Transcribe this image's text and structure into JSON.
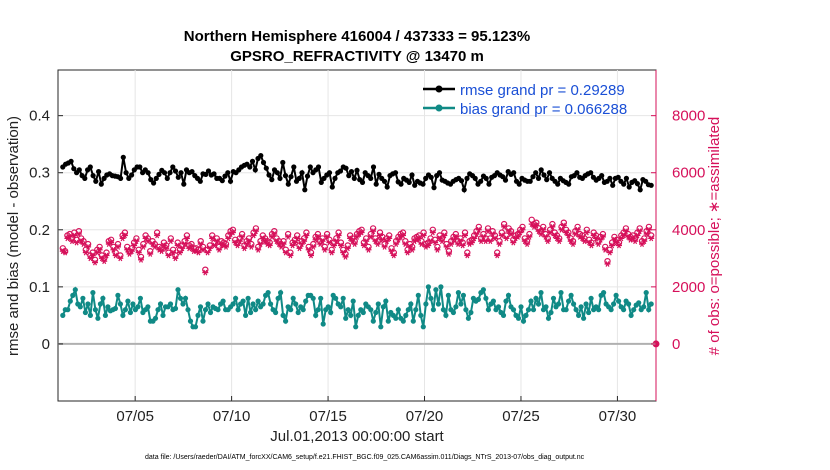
{
  "chart_data": {
    "type": "line",
    "title_line1": "Northern Hemisphere 416004 / 437333 = 95.123%",
    "title_line2": "GPSRO_REFRACTIVITY @ 13470 m",
    "xlabel": "Jul.01,2013 00:00:00 start",
    "ylabel_left": "rmse and bias (model - observation)",
    "ylabel_right": "# of obs: o=possible; ∗=assimilated",
    "footer": "data file: /Users/raeder/DAI/ATM_forcXX/CAM6_setup/f.e21.FHIST_BGC.f09_025.CAM6assim.011/Diags_NTrS_2013-07/obs_diag_output.nc",
    "x_range": [
      1.0,
      32.0
    ],
    "x_ticks": [
      {
        "value": 5,
        "label": "07/05"
      },
      {
        "value": 10,
        "label": "07/10"
      },
      {
        "value": 15,
        "label": "07/15"
      },
      {
        "value": 20,
        "label": "07/20"
      },
      {
        "value": 25,
        "label": "07/25"
      },
      {
        "value": 30,
        "label": "07/30"
      }
    ],
    "ylim_left": [
      -0.1,
      0.48
    ],
    "yticks_left": [
      {
        "value": 0,
        "label": "0"
      },
      {
        "value": 0.1,
        "label": "0.1"
      },
      {
        "value": 0.2,
        "label": "0.2"
      },
      {
        "value": 0.3,
        "label": "0.3"
      },
      {
        "value": 0.4,
        "label": "0.4"
      }
    ],
    "ylim_right": [
      -2000,
      9600
    ],
    "yticks_right": [
      {
        "value": 0,
        "label": "0"
      },
      {
        "value": 2000,
        "label": "2000"
      },
      {
        "value": 4000,
        "label": "4000"
      },
      {
        "value": 6000,
        "label": "6000"
      },
      {
        "value": 8000,
        "label": "8000"
      }
    ],
    "zero_line_left": 0,
    "legend_position": "top-right",
    "colors": {
      "rmse": "#000000",
      "bias": "#108a86",
      "obs": "#d6105a",
      "zero": "#b0b0b0",
      "legend_text": "#1a4fd6"
    },
    "series": [
      {
        "name": "rmse grand pr = 0.29289",
        "key": "rmse",
        "axis": "left",
        "values": [
          0.31,
          0.315,
          0.317,
          0.32,
          0.307,
          0.3,
          0.305,
          0.295,
          0.29,
          0.305,
          0.31,
          0.295,
          0.285,
          0.302,
          0.28,
          0.29,
          0.296,
          0.298,
          0.295,
          0.294,
          0.293,
          0.29,
          0.327,
          0.3,
          0.29,
          0.296,
          0.305,
          0.31,
          0.31,
          0.3,
          0.305,
          0.3,
          0.288,
          0.282,
          0.29,
          0.297,
          0.304,
          0.3,
          0.29,
          0.3,
          0.31,
          0.303,
          0.292,
          0.3,
          0.28,
          0.305,
          0.3,
          0.302,
          0.295,
          0.29,
          0.285,
          0.298,
          0.297,
          0.303,
          0.296,
          0.298,
          0.29,
          0.29,
          0.286,
          0.294,
          0.3,
          0.285,
          0.302,
          0.3,
          0.305,
          0.31,
          0.313,
          0.315,
          0.31,
          0.32,
          0.305,
          0.325,
          0.33,
          0.318,
          0.308,
          0.296,
          0.288,
          0.305,
          0.3,
          0.29,
          0.318,
          0.295,
          0.28,
          0.293,
          0.31,
          0.285,
          0.29,
          0.3,
          0.27,
          0.294,
          0.31,
          0.3,
          0.305,
          0.31,
          0.283,
          0.29,
          0.296,
          0.3,
          0.275,
          0.29,
          0.3,
          0.303,
          0.31,
          0.308,
          0.295,
          0.302,
          0.29,
          0.304,
          0.288,
          0.283,
          0.3,
          0.295,
          0.29,
          0.31,
          0.28,
          0.297,
          0.29,
          0.285,
          0.275,
          0.295,
          0.298,
          0.3,
          0.284,
          0.28,
          0.29,
          0.287,
          0.283,
          0.296,
          0.278,
          0.285,
          0.282,
          0.28,
          0.29,
          0.296,
          0.292,
          0.274,
          0.295,
          0.3,
          0.287,
          0.285,
          0.282,
          0.28,
          0.285,
          0.288,
          0.29,
          0.286,
          0.27,
          0.29,
          0.298,
          0.295,
          0.29,
          0.28,
          0.285,
          0.294,
          0.29,
          0.28,
          0.292,
          0.295,
          0.3,
          0.296,
          0.293,
          0.287,
          0.302,
          0.297,
          0.3,
          0.285,
          0.28,
          0.29,
          0.287,
          0.285,
          0.285,
          0.293,
          0.3,
          0.29,
          0.305,
          0.296,
          0.288,
          0.3,
          0.29,
          0.285,
          0.28,
          0.29,
          0.286,
          0.283,
          0.28,
          0.293,
          0.295,
          0.3,
          0.292,
          0.29,
          0.295,
          0.298,
          0.3,
          0.292,
          0.287,
          0.29,
          0.295,
          0.283,
          0.285,
          0.29,
          0.278,
          0.29,
          0.292,
          0.285,
          0.28,
          0.29,
          0.275,
          0.283,
          0.286,
          0.281,
          0.27,
          0.288,
          0.285,
          0.279,
          0.278
        ]
      },
      {
        "name": "bias grand pr = 0.066288",
        "key": "bias",
        "axis": "left",
        "values": [
          0.05,
          0.06,
          0.06,
          0.075,
          0.085,
          0.095,
          0.07,
          0.065,
          0.08,
          0.055,
          0.07,
          0.05,
          0.09,
          0.06,
          0.045,
          0.07,
          0.08,
          0.05,
          0.065,
          0.058,
          0.06,
          0.062,
          0.085,
          0.07,
          0.05,
          0.06,
          0.075,
          0.055,
          0.07,
          0.06,
          0.065,
          0.08,
          0.055,
          0.06,
          0.065,
          0.04,
          0.04,
          0.045,
          0.06,
          0.07,
          0.05,
          0.065,
          0.065,
          0.07,
          0.06,
          0.062,
          0.095,
          0.08,
          0.07,
          0.08,
          0.06,
          0.04,
          0.03,
          0.03,
          0.05,
          0.065,
          0.04,
          0.06,
          0.07,
          0.055,
          0.065,
          0.062,
          0.06,
          0.07,
          0.075,
          0.06,
          0.06,
          0.065,
          0.07,
          0.08,
          0.06,
          0.07,
          0.075,
          0.05,
          0.08,
          0.055,
          0.07,
          0.06,
          0.075,
          0.065,
          0.07,
          0.085,
          0.09,
          0.07,
          0.06,
          0.055,
          0.08,
          0.09,
          0.05,
          0.04,
          0.065,
          0.06,
          0.08,
          0.07,
          0.055,
          0.065,
          0.06,
          0.075,
          0.085,
          0.085,
          0.08,
          0.05,
          0.06,
          0.08,
          0.035,
          0.06,
          0.065,
          0.055,
          0.085,
          0.08,
          0.07,
          0.065,
          0.08,
          0.045,
          0.06,
          0.05,
          0.075,
          0.03,
          0.05,
          0.06,
          0.055,
          0.07,
          0.065,
          0.06,
          0.04,
          0.055,
          0.07,
          0.03,
          0.065,
          0.075,
          0.04,
          0.055,
          0.05,
          0.045,
          0.06,
          0.045,
          0.04,
          0.05,
          0.06,
          0.07,
          0.04,
          0.06,
          0.085,
          0.05,
          0.03,
          0.07,
          0.1,
          0.08,
          0.06,
          0.095,
          0.07,
          0.1,
          0.06,
          0.05,
          0.085,
          0.06,
          0.055,
          0.065,
          0.09,
          0.07,
          0.085,
          0.06,
          0.045,
          0.055,
          0.08,
          0.075,
          0.078,
          0.09,
          0.095,
          0.08,
          0.06,
          0.07,
          0.075,
          0.06,
          0.065,
          0.055,
          0.05,
          0.075,
          0.085,
          0.065,
          0.06,
          0.05,
          0.045,
          0.065,
          0.04,
          0.05,
          0.06,
          0.075,
          0.06,
          0.08,
          0.07,
          0.09,
          0.06,
          0.065,
          0.045,
          0.055,
          0.08,
          0.065,
          0.07,
          0.09,
          0.06,
          0.06,
          0.075,
          0.085,
          0.07,
          0.06,
          0.05,
          0.065,
          0.045,
          0.07,
          0.055,
          0.08,
          0.06,
          0.065,
          0.06,
          0.085,
          0.09,
          0.07,
          0.065,
          0.06,
          0.07,
          0.085,
          0.075,
          0.065,
          0.06,
          0.075,
          0.07,
          0.05,
          0.06,
          0.068,
          0.072,
          0.06,
          0.065,
          0.09,
          0.06,
          0.07
        ]
      },
      {
        "key": "obs_possible",
        "axis": "right",
        "values": [
          3350,
          3250,
          3800,
          3850,
          3700,
          3900,
          3650,
          3950,
          3700,
          3600,
          3300,
          3500,
          3100,
          3200,
          2950,
          3300,
          3400,
          3100,
          3000,
          3200,
          3600,
          3650,
          3400,
          3200,
          3500,
          3100,
          3800,
          3900,
          3400,
          3250,
          3350,
          3550,
          3700,
          3300,
          3050,
          3500,
          3800,
          3700,
          3250,
          3600,
          3500,
          3900,
          3400,
          3350,
          3550,
          3450,
          3200,
          3700,
          3300,
          3100,
          3550,
          3300,
          3450,
          3600,
          3800,
          3450,
          3500,
          3350,
          3350,
          3300,
          3600,
          3400,
          2600,
          3300,
          3450,
          3800,
          3550,
          3700,
          3400,
          3600,
          3550,
          3500,
          3800,
          3950,
          4000,
          3650,
          3550,
          3700,
          3850,
          3450,
          3600,
          3700,
          3500,
          3900,
          4050,
          3400,
          3600,
          3800,
          3700,
          3600,
          3550,
          3850,
          3950,
          3700,
          3600,
          3500,
          3600,
          3300,
          3850,
          3200,
          3550,
          3650,
          3800,
          3450,
          3600,
          3700,
          3900,
          3400,
          3200,
          3500,
          3750,
          3850,
          3600,
          3700,
          3400,
          3850,
          3650,
          3300,
          3550,
          3700,
          3900,
          3550,
          3300,
          3150,
          3450,
          3800,
          3700,
          3600,
          3850,
          3950,
          4000,
          3550,
          3700,
          3400,
          3850,
          4050,
          3700,
          3600,
          3900,
          3750,
          3500,
          3700,
          3800,
          3350,
          3200,
          3600,
          3750,
          3850,
          3900,
          3600,
          3300,
          3500,
          3400,
          3700,
          3750,
          3800,
          3600,
          3900,
          3500,
          3550,
          3700,
          4000,
          3650,
          3400,
          3800,
          3700,
          3900,
          3500,
          3250,
          3600,
          3750,
          3850,
          3600,
          3700,
          3550,
          3900,
          3200,
          3600,
          3650,
          3800,
          3950,
          4100,
          3700,
          3850,
          3700,
          4050,
          3700,
          3950,
          3800,
          3200,
          3600,
          3900,
          4200,
          3800,
          4050,
          3950,
          3650,
          3800,
          3850,
          4000,
          4100,
          3700,
          3600,
          3850,
          4350,
          4200,
          4250,
          4050,
          3950,
          4100,
          3850,
          3700,
          4000,
          4200,
          3900,
          3800,
          3700,
          4100,
          4250,
          4000,
          3900,
          3700,
          3600,
          3950,
          4100,
          3850,
          3800,
          3700,
          4000,
          3650,
          3550,
          3900,
          3800,
          3600,
          3750,
          3850,
          3400,
          2900,
          3300,
          3550,
          3750,
          3650,
          3550,
          3800,
          3900,
          4050,
          3850,
          3750,
          3800,
          3700,
          3900,
          4050,
          3600,
          3700,
          3950,
          4100,
          3800
        ]
      },
      {
        "key": "obs_assimilated",
        "axis": "right",
        "values": [
          3250,
          3200,
          3700,
          3750,
          3600,
          3800,
          3550,
          3850,
          3600,
          3500,
          3200,
          3400,
          3000,
          3100,
          2850,
          3200,
          3300,
          3000,
          2900,
          3100,
          3500,
          3550,
          3300,
          3100,
          3400,
          3000,
          3700,
          3800,
          3300,
          3150,
          3250,
          3450,
          3600,
          3200,
          2950,
          3400,
          3700,
          3600,
          3150,
          3500,
          3400,
          3800,
          3300,
          3250,
          3450,
          3350,
          3100,
          3600,
          3200,
          3000,
          3450,
          3200,
          3350,
          3500,
          3700,
          3350,
          3400,
          3250,
          3250,
          3200,
          3500,
          3300,
          2500,
          3200,
          3350,
          3700,
          3450,
          3600,
          3300,
          3500,
          3450,
          3400,
          3700,
          3850,
          3900,
          3550,
          3450,
          3600,
          3750,
          3350,
          3500,
          3600,
          3400,
          3800,
          3950,
          3300,
          3500,
          3700,
          3600,
          3500,
          3450,
          3750,
          3850,
          3600,
          3500,
          3400,
          3500,
          3200,
          3750,
          3100,
          3450,
          3550,
          3700,
          3350,
          3500,
          3600,
          3800,
          3300,
          3100,
          3400,
          3650,
          3750,
          3500,
          3600,
          3300,
          3750,
          3550,
          3200,
          3450,
          3600,
          3800,
          3450,
          3200,
          3050,
          3350,
          3700,
          3600,
          3500,
          3750,
          3850,
          3900,
          3450,
          3600,
          3300,
          3750,
          3950,
          3600,
          3500,
          3800,
          3650,
          3400,
          3600,
          3700,
          3250,
          3100,
          3500,
          3650,
          3750,
          3800,
          3500,
          3200,
          3400,
          3300,
          3600,
          3650,
          3700,
          3500,
          3800,
          3400,
          3450,
          3600,
          3900,
          3550,
          3300,
          3700,
          3600,
          3800,
          3400,
          3150,
          3500,
          3650,
          3750,
          3500,
          3600,
          3450,
          3800,
          3100,
          3500,
          3550,
          3700,
          3850,
          4000,
          3600,
          3750,
          3600,
          3950,
          3600,
          3850,
          3700,
          3100,
          3500,
          3800,
          4100,
          3700,
          3950,
          3850,
          3550,
          3700,
          3750,
          3900,
          4000,
          3600,
          3500,
          3750,
          4200,
          4100,
          4150,
          3950,
          3850,
          4000,
          3750,
          3600,
          3900,
          4100,
          3800,
          3700,
          3600,
          4000,
          4150,
          3900,
          3800,
          3600,
          3500,
          3850,
          4000,
          3750,
          3700,
          3600,
          3900,
          3550,
          3450,
          3800,
          3700,
          3500,
          3650,
          3750,
          3300,
          2800,
          3200,
          3450,
          3650,
          3550,
          3450,
          3700,
          3800,
          3950,
          3750,
          3650,
          3700,
          3600,
          3800,
          3950,
          3500,
          3600,
          3850,
          4000,
          3700
        ]
      }
    ]
  }
}
